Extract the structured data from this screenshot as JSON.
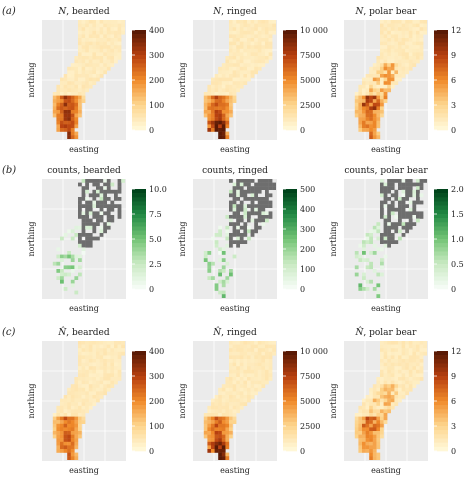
{
  "figure": {
    "rows": [
      {
        "label": "(a)",
        "kind": "sequential-orange",
        "panels": [
          {
            "title_symbol": "N",
            "title_rest": ", bearded",
            "xlabel": "easting",
            "ylabel": "northing",
            "legend_ticks": [
              "400",
              "300",
              "200",
              "100",
              "0"
            ],
            "legend_range": [
              0,
              400
            ]
          },
          {
            "title_symbol": "N",
            "title_rest": ", ringed",
            "xlabel": "easting",
            "ylabel": "northing",
            "legend_ticks": [
              "10 000",
              "7500",
              "5000",
              "2500",
              "0"
            ],
            "legend_range": [
              0,
              10000
            ]
          },
          {
            "title_symbol": "N",
            "title_rest": ", polar bear",
            "xlabel": "easting",
            "ylabel": "northing",
            "legend_ticks": [
              "12",
              "9",
              "6",
              "3",
              "0"
            ],
            "legend_range": [
              0,
              12
            ]
          }
        ]
      },
      {
        "label": "(b)",
        "kind": "sequential-green",
        "panels": [
          {
            "title_symbol": "",
            "title_rest": "counts, bearded",
            "xlabel": "easting",
            "ylabel": "northing",
            "legend_ticks": [
              "10.0",
              "7.5",
              "5.0",
              "2.5",
              "0"
            ],
            "legend_range": [
              0,
              10
            ]
          },
          {
            "title_symbol": "",
            "title_rest": "counts, ringed",
            "xlabel": "easting",
            "ylabel": "northing",
            "legend_ticks": [
              "500",
              "400",
              "300",
              "200",
              "100",
              "0"
            ],
            "legend_range": [
              0,
              500
            ]
          },
          {
            "title_symbol": "",
            "title_rest": "counts, polar bear",
            "xlabel": "easting",
            "ylabel": "northing",
            "legend_ticks": [
              "2.0",
              "1.5",
              "1.0",
              "0.5",
              "0"
            ],
            "legend_range": [
              0,
              2
            ]
          }
        ]
      },
      {
        "label": "(c)",
        "kind": "sequential-orange",
        "panels": [
          {
            "title_symbol": "N̂",
            "title_rest": ", bearded",
            "xlabel": "easting",
            "ylabel": "northing",
            "legend_ticks": [
              "400",
              "300",
              "200",
              "100",
              "0"
            ],
            "legend_range": [
              0,
              400
            ]
          },
          {
            "title_symbol": "N̂",
            "title_rest": ", ringed",
            "xlabel": "easting",
            "ylabel": "northing",
            "legend_ticks": [
              "10 000",
              "7500",
              "5000",
              "2500",
              "0"
            ],
            "legend_range": [
              0,
              10000
            ]
          },
          {
            "title_symbol": "N̂",
            "title_rest": ", polar bear",
            "xlabel": "easting",
            "ylabel": "northing",
            "legend_ticks": [
              "12",
              "9",
              "6",
              "3",
              "0"
            ],
            "legend_range": [
              0,
              12
            ]
          }
        ]
      }
    ]
  },
  "chart_data": [
    {
      "type": "heatmap",
      "title": "N, bearded",
      "xlabel": "easting",
      "ylabel": "northing",
      "colorbar_range": [
        0,
        400
      ],
      "colorbar_ticks": [
        0,
        100,
        200,
        300,
        400
      ],
      "colorscale": [
        "#fff7d6",
        "#fdd38a",
        "#f08a2a",
        "#b8400f",
        "#5a1a05"
      ],
      "hotspot": "south-west arm",
      "hotspot_level": 0.9
    },
    {
      "type": "heatmap",
      "title": "N, ringed",
      "xlabel": "easting",
      "ylabel": "northing",
      "colorbar_range": [
        0,
        10000
      ],
      "colorbar_ticks": [
        0,
        2500,
        5000,
        7500,
        10000
      ],
      "colorscale": [
        "#fff7d6",
        "#fdd38a",
        "#f08a2a",
        "#b8400f",
        "#5a1a05"
      ],
      "hotspot": "southern tip",
      "hotspot_level": 0.8
    },
    {
      "type": "heatmap",
      "title": "N, polar bear",
      "xlabel": "easting",
      "ylabel": "northing",
      "colorbar_range": [
        0,
        12
      ],
      "colorbar_ticks": [
        0,
        3,
        6,
        9,
        12
      ],
      "colorscale": [
        "#fff7d6",
        "#fdd38a",
        "#f08a2a",
        "#b8400f",
        "#5a1a05"
      ],
      "hotspot": "south-west arm and diagonal band",
      "hotspot_level": 0.6
    },
    {
      "type": "heatmap",
      "title": "counts, bearded",
      "xlabel": "easting",
      "ylabel": "northing",
      "colorbar_range": [
        0,
        10
      ],
      "colorbar_ticks": [
        0,
        2.5,
        5,
        7.5,
        10
      ],
      "colorscale": [
        "#f4fbf4",
        "#c7e9c0",
        "#74c476",
        "#238b45",
        "#00441b"
      ],
      "unsurveyed_color": "#6e6e6e"
    },
    {
      "type": "heatmap",
      "title": "counts, ringed",
      "xlabel": "easting",
      "ylabel": "northing",
      "colorbar_range": [
        0,
        500
      ],
      "colorbar_ticks": [
        0,
        100,
        200,
        300,
        400,
        500
      ],
      "colorscale": [
        "#f4fbf4",
        "#c7e9c0",
        "#74c476",
        "#238b45",
        "#00441b"
      ],
      "unsurveyed_color": "#6e6e6e"
    },
    {
      "type": "heatmap",
      "title": "counts, polar bear",
      "xlabel": "easting",
      "ylabel": "northing",
      "colorbar_range": [
        0,
        2
      ],
      "colorbar_ticks": [
        0,
        0.5,
        1,
        1.5,
        2
      ],
      "colorscale": [
        "#f4fbf4",
        "#c7e9c0",
        "#74c476",
        "#238b45",
        "#00441b"
      ],
      "unsurveyed_color": "#6e6e6e"
    },
    {
      "type": "heatmap",
      "title": "N̂, bearded",
      "xlabel": "easting",
      "ylabel": "northing",
      "colorbar_range": [
        0,
        400
      ],
      "colorbar_ticks": [
        0,
        100,
        200,
        300,
        400
      ],
      "colorscale": [
        "#fff7d6",
        "#fdd38a",
        "#f08a2a",
        "#b8400f",
        "#5a1a05"
      ],
      "hotspot": "south-west arm",
      "hotspot_level": 0.7
    },
    {
      "type": "heatmap",
      "title": "N̂, ringed",
      "xlabel": "easting",
      "ylabel": "northing",
      "colorbar_range": [
        0,
        10000
      ],
      "colorbar_ticks": [
        0,
        2500,
        5000,
        7500,
        10000
      ],
      "colorscale": [
        "#fff7d6",
        "#fdd38a",
        "#f08a2a",
        "#b8400f",
        "#5a1a05"
      ],
      "hotspot": "southern tip",
      "hotspot_level": 0.75
    },
    {
      "type": "heatmap",
      "title": "N̂, polar bear",
      "xlabel": "easting",
      "ylabel": "northing",
      "colorbar_range": [
        0,
        12
      ],
      "colorbar_ticks": [
        0,
        3,
        6,
        9,
        12
      ],
      "colorscale": [
        "#fff7d6",
        "#fdd38a",
        "#f08a2a",
        "#b8400f",
        "#5a1a05"
      ],
      "hotspot": "south-west arm and diagonal band",
      "hotspot_level": 0.5
    }
  ],
  "colors": {
    "panel_background": "#ebebeb",
    "grid": "#ffffff",
    "unsurveyed": "#6e6e6e"
  }
}
